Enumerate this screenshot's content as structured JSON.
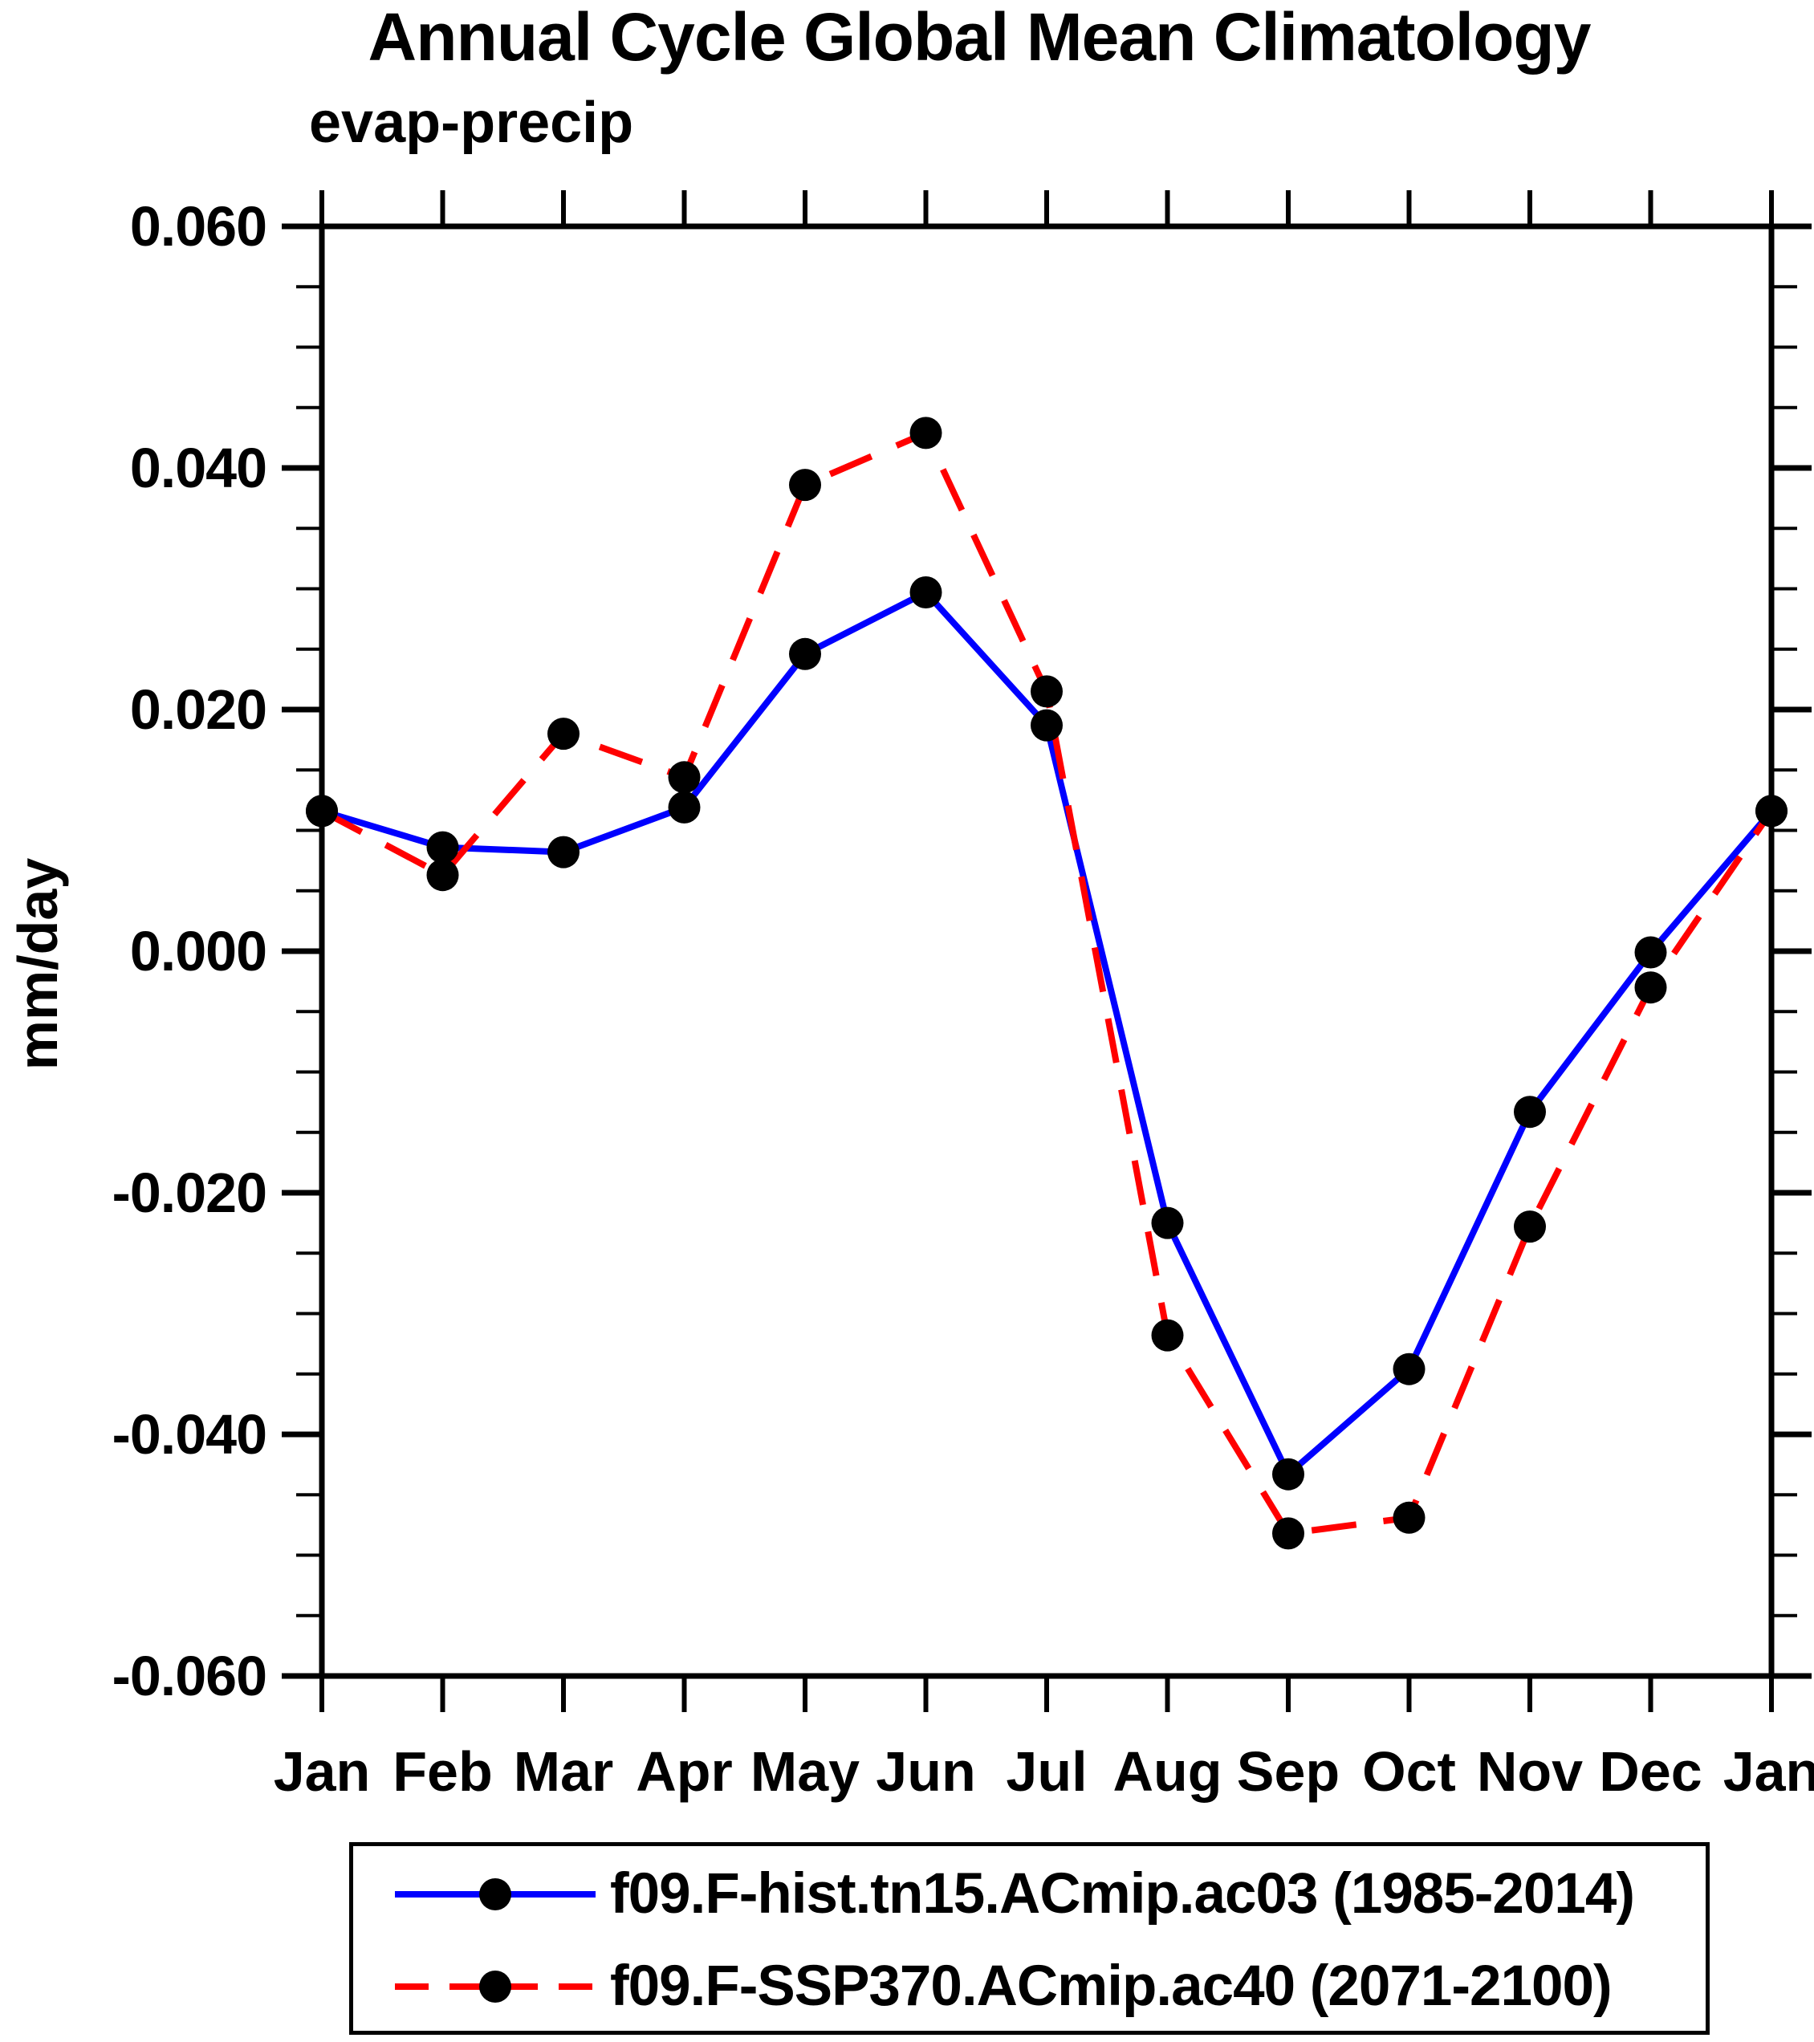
{
  "chart_data": {
    "type": "line",
    "title": "Annual Cycle Global Mean Climatology",
    "subtitle": "evap-precip",
    "ylabel": "mm/day",
    "xlabel": "",
    "x_categories": [
      "Jan",
      "Feb",
      "Mar",
      "Apr",
      "May",
      "Jun",
      "Jul",
      "Aug",
      "Sep",
      "Oct",
      "Nov",
      "Dec",
      "Jan"
    ],
    "ylim": [
      -0.06,
      0.06
    ],
    "y_major_tick_step": 0.02,
    "y_minor_tick_step": 0.005,
    "y_tick_labels": [
      "0.060",
      "0.040",
      "0.020",
      "0.000",
      "-0.020",
      "-0.040",
      "-0.060"
    ],
    "y_tick_values": [
      0.06,
      0.04,
      0.02,
      0.0,
      -0.02,
      -0.04,
      -0.06
    ],
    "grid": false,
    "legend_position": "bottom",
    "background_color": "#ffffff",
    "text_color": "#000000",
    "axis_color": "#000000",
    "marker": "filled-circle",
    "marker_color": "#000000",
    "series": [
      {
        "name": "f09.F-hist.tn15.ACmip.ac03 (1985-2014)",
        "color": "#0000ff",
        "style": "solid",
        "values": [
          0.0116,
          0.0086,
          0.0082,
          0.0119,
          0.0246,
          0.0297,
          0.0187,
          -0.0225,
          -0.0433,
          -0.0346,
          -0.0133,
          -0.0001,
          0.0116
        ]
      },
      {
        "name": "f09.F-SSP370.ACmip.ac40 (2071-2100)",
        "color": "#ff0000",
        "style": "dashed",
        "values": [
          0.0116,
          0.0063,
          0.018,
          0.0144,
          0.0386,
          0.0429,
          0.0215,
          -0.0318,
          -0.0482,
          -0.0469,
          -0.0228,
          -0.003,
          0.0116
        ]
      }
    ]
  }
}
